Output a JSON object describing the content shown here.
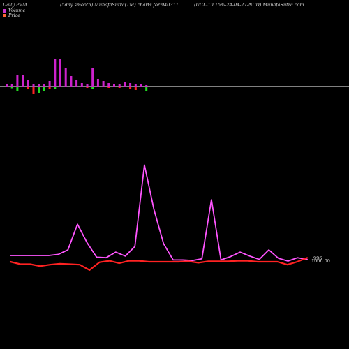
{
  "header": {
    "left": "Daily PVM",
    "center": "(5day smooth) MunafaSutra(TM) charts for 940311",
    "right": "(UCL-10.15%-24-04-27-NCD) MunafaSutra.com"
  },
  "legend": [
    {
      "label": "Volume",
      "color": "#cc33cc"
    },
    {
      "label": "Price",
      "color": "#ff6633"
    }
  ],
  "price_label_1": "996",
  "price_label_2": "1006.00",
  "colors": {
    "background": "#000000",
    "volume_up": "#cc22cc",
    "volume_down": "#ff2222",
    "volume_green": "#22dd22",
    "volume_line": "#ff55ff",
    "price_line": "#ff2222",
    "baseline": "#ffffff"
  },
  "chart_data": {
    "type": "line",
    "volume_bars": [
      {
        "up": 0.3,
        "down": 0.0,
        "down_color": "red"
      },
      {
        "up": 0.3,
        "down": 0.15,
        "down_color": "green"
      },
      {
        "up": 1.7,
        "down": 0.5,
        "down_color": "green"
      },
      {
        "up": 1.7,
        "down": 0.0,
        "down_color": "red"
      },
      {
        "up": 0.9,
        "down": 0.3,
        "down_color": "red"
      },
      {
        "up": 0.4,
        "down": 1.0,
        "down_color": "red"
      },
      {
        "up": 0.4,
        "down": 0.8,
        "down_color": "green"
      },
      {
        "up": 0.3,
        "down": 0.6,
        "down_color": "green"
      },
      {
        "up": 0.8,
        "down": 0.2,
        "down_color": "red"
      },
      {
        "up": 3.9,
        "down": 0.2,
        "down_color": "green"
      },
      {
        "up": 3.9,
        "down": 0.0,
        "down_color": "red"
      },
      {
        "up": 2.7,
        "down": 0.0,
        "down_color": "red"
      },
      {
        "up": 1.5,
        "down": 0.0,
        "down_color": "red"
      },
      {
        "up": 0.9,
        "down": 0.0,
        "down_color": "red"
      },
      {
        "up": 0.5,
        "down": 0.0,
        "down_color": "red"
      },
      {
        "up": 0.3,
        "down": 0.1,
        "down_color": "red"
      },
      {
        "up": 2.6,
        "down": 0.2,
        "down_color": "green"
      },
      {
        "up": 1.1,
        "down": 0.0,
        "down_color": "red"
      },
      {
        "up": 0.8,
        "down": 0.0,
        "down_color": "red"
      },
      {
        "up": 0.5,
        "down": 0.1,
        "down_color": "red"
      },
      {
        "up": 0.4,
        "down": 0.0,
        "down_color": "red"
      },
      {
        "up": 0.3,
        "down": 0.1,
        "down_color": "red"
      },
      {
        "up": 0.6,
        "down": 0.0,
        "down_color": "red"
      },
      {
        "up": 0.5,
        "down": 0.2,
        "down_color": "red"
      },
      {
        "up": 0.3,
        "down": 0.4,
        "down_color": "red"
      },
      {
        "up": 0.4,
        "down": 0.0,
        "down_color": "red"
      },
      {
        "up": 0.2,
        "down": 0.6,
        "down_color": "green"
      }
    ],
    "volume_line": [
      1.0,
      1.0,
      1.0,
      1.0,
      1.0,
      1.2,
      2.0,
      6.6,
      3.3,
      0.7,
      0.6,
      1.6,
      0.9,
      2.6,
      17.2,
      9.2,
      3.1,
      0.2,
      0.2,
      0.1,
      0.4,
      11.0,
      0.2,
      0.8,
      1.6,
      0.9,
      0.3,
      2.0,
      0.5,
      0.0,
      0.6,
      0.3
    ],
    "price_line": [
      1.0,
      0.5,
      0.5,
      0.1,
      0.4,
      0.6,
      0.5,
      0.4,
      -0.7,
      0.9,
      1.2,
      0.7,
      1.2,
      1.2,
      1.0,
      1.0,
      1.0,
      1.0,
      1.1,
      0.8,
      1.1,
      1.1,
      1.1,
      1.2,
      1.2,
      1.0,
      1.0,
      1.0,
      0.4,
      1.0,
      1.8
    ]
  }
}
